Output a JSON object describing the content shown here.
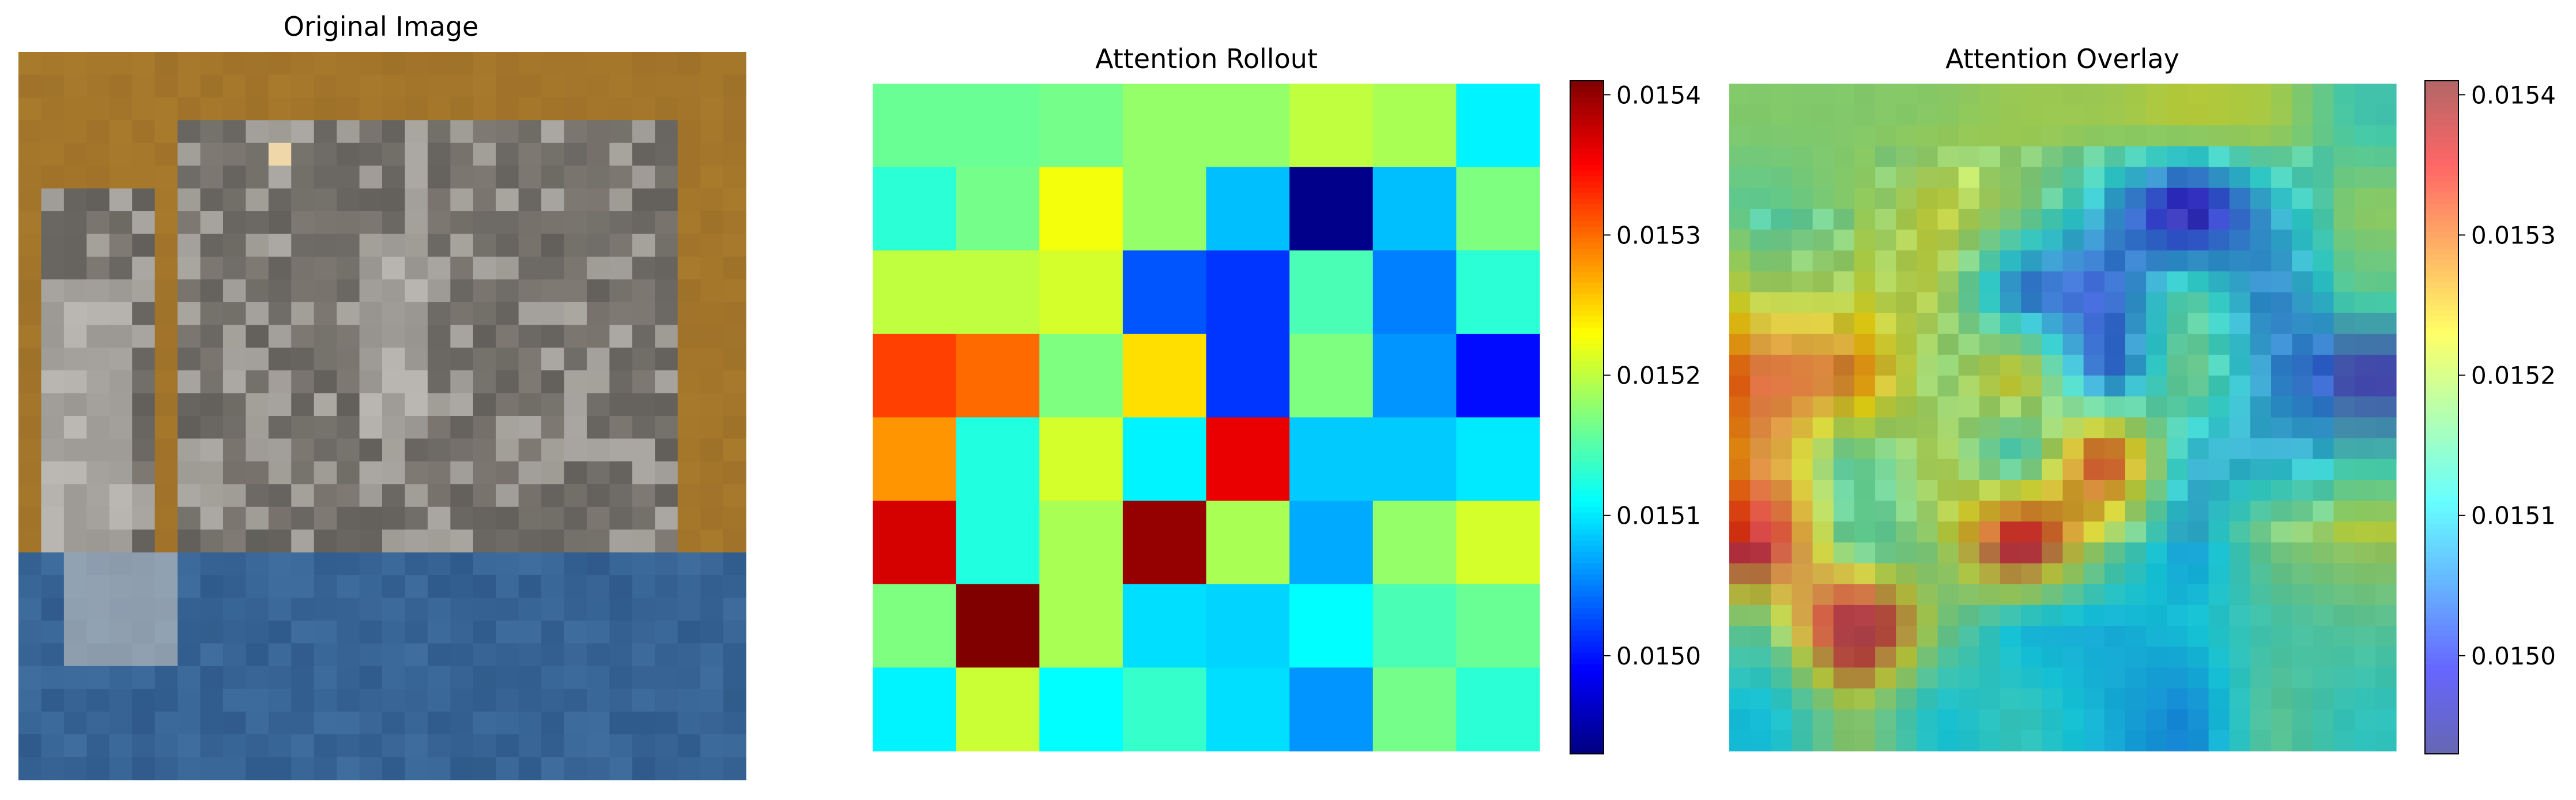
{
  "chart_data": [
    {
      "type": "image",
      "title": "Original Image",
      "rows": 32,
      "cols": 32,
      "description_colors": {
        "background": "#a87a2c",
        "cat_grey": "#7f7a73",
        "cat_light": "#c9c6c2",
        "cat_dark": "#3a3a3a",
        "ground_blue": "#3f6e9e"
      }
    },
    {
      "type": "heatmap",
      "title": "Attention Rollout",
      "rows": 8,
      "cols": 8,
      "values": [
        [
          0.01516,
          0.01516,
          0.015165,
          0.01518,
          0.01518,
          0.0152,
          0.01519,
          0.015105
        ],
        [
          0.01513,
          0.015165,
          0.015225,
          0.01518,
          0.01508,
          0.014935,
          0.01508,
          0.01517
        ],
        [
          0.0152,
          0.0152,
          0.01521,
          0.01503,
          0.015015,
          0.015145,
          0.01505,
          0.01513
        ],
        [
          0.01532,
          0.0153,
          0.01517,
          0.015245,
          0.015015,
          0.01517,
          0.01506,
          0.014995
        ],
        [
          0.01528,
          0.015125,
          0.01521,
          0.015105,
          0.01536,
          0.015085,
          0.015085,
          0.0151
        ],
        [
          0.01537,
          0.015125,
          0.01519,
          0.0154,
          0.01519,
          0.01507,
          0.01518,
          0.01521
        ],
        [
          0.01517,
          0.01544,
          0.01519,
          0.015095,
          0.01509,
          0.01511,
          0.015145,
          0.01516
        ],
        [
          0.015105,
          0.015205,
          0.01511,
          0.015135,
          0.015095,
          0.01506,
          0.015165,
          0.01513
        ]
      ],
      "vmin": 0.01493,
      "vmax": 0.01541,
      "colormap": "jet",
      "colorbar_ticks": [
        "0.0150",
        "0.0151",
        "0.0152",
        "0.0153",
        "0.0154"
      ],
      "colorbar_tick_values": [
        0.015,
        0.0151,
        0.0152,
        0.0153,
        0.0154
      ]
    },
    {
      "type": "heatmap",
      "title": "Attention Overlay",
      "rows": 32,
      "cols": 32,
      "source": "Attention Rollout values upsampled and blended over Original Image",
      "alpha": 0.6,
      "colormap": "jet",
      "colorbar_ticks": [
        "0.0150",
        "0.0151",
        "0.0152",
        "0.0153",
        "0.0154"
      ],
      "colorbar_tick_values": [
        0.015,
        0.0151,
        0.0152,
        0.0153,
        0.0154
      ]
    }
  ]
}
